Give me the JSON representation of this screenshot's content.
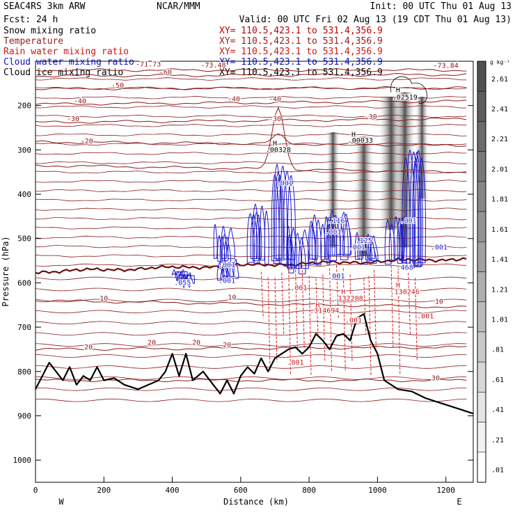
{
  "header": {
    "model": "SEAC4RS  3km ARW",
    "center": "NCAR/MMM",
    "init": "Init: 00 UTC Thu 01 Aug 13",
    "fcst": "Fcst:   24 h",
    "valid": "Valid: 00 UTC Fri 02 Aug 13 (19 CDT Thu 01 Aug 13)"
  },
  "fields": [
    {
      "label": "Snow mixing ratio",
      "range": "XY= 110.5,423.1 to 531.4,356.9",
      "color": "#000000"
    },
    {
      "label": "Temperature",
      "range": "XY= 110.5,423.1 to 531.4,356.9",
      "color": "#9b1b1b"
    },
    {
      "label": "Rain water mixing ratio",
      "range": "XY= 110.5,423.1 to 531.4,356.9",
      "color": "#d01515"
    },
    {
      "label": "Cloud water mixing ratio",
      "range": "XY= 110.5,423.1 to 531.4,356.9",
      "color": "#1414c8"
    },
    {
      "label": "Cloud ice mixing ratio",
      "range": "XY= 110.5,423.1 to 531.4,356.9",
      "color": "#000000"
    }
  ],
  "colorbar": {
    "unit": "g kg⁻¹",
    "labels": [
      "2.61",
      "2.41",
      "2.21",
      "2.01",
      "1.81",
      "1.61",
      "1.41",
      "1.21",
      "1.01",
      ".81",
      ".61",
      ".41",
      ".21",
      ".01"
    ]
  },
  "chart_data": {
    "type": "cross-section",
    "xlabel": "Distance (km)",
    "ylabel": "Pressure (hPa)",
    "xlim": [
      0,
      1280
    ],
    "ylim": [
      1050,
      100
    ],
    "x_ticks": [
      "0",
      "200",
      "400",
      "600",
      "800",
      "1000",
      "1200"
    ],
    "y_ticks": [
      "200",
      "300",
      "400",
      "500",
      "600",
      "700",
      "800",
      "900",
      "1000"
    ],
    "west_label": "W",
    "east_label": "E",
    "temperature_isotherms": [
      {
        "value": -70,
        "pressure_start": 120,
        "pressure_end": 120
      },
      {
        "value": -60,
        "pressure_start": 133,
        "pressure_end": 130
      },
      {
        "value": -50,
        "pressure_start": 162,
        "pressure_end": 160
      },
      {
        "value": -40,
        "pressure_start": 197,
        "pressure_end": 190
      },
      {
        "value": -30,
        "pressure_start": 238,
        "pressure_end": 230
      },
      {
        "value": -20,
        "pressure_start": 282,
        "pressure_end": 290
      },
      {
        "value": -10,
        "pressure_start": 335,
        "pressure_end": 350
      },
      {
        "value": 0,
        "pressure_start": 575,
        "pressure_end": 545
      },
      {
        "value": 10,
        "pressure_start": 640,
        "pressure_end": 655
      },
      {
        "value": 20,
        "pressure_start": 750,
        "pressure_end": 745
      },
      {
        "value": 30,
        "pressure_start": 820,
        "pressure_end": 820
      }
    ],
    "temperature_labels": [
      {
        "text": "-71.73",
        "x": 330,
        "p": 112
      },
      {
        "text": "-73.48",
        "x": 520,
        "p": 114
      },
      {
        "text": "-73.84",
        "x": 1200,
        "p": 115
      },
      {
        "text": "-60",
        "x": 380,
        "p": 130
      },
      {
        "text": "-50",
        "x": 240,
        "p": 160
      },
      {
        "text": "-40",
        "x": 130,
        "p": 195
      },
      {
        "text": "-40",
        "x": 580,
        "p": 190
      },
      {
        "text": "-40",
        "x": 700,
        "p": 190
      },
      {
        "text": "-30",
        "x": 110,
        "p": 235
      },
      {
        "text": "-30",
        "x": 700,
        "p": 235
      },
      {
        "text": "-30",
        "x": 980,
        "p": 230
      },
      {
        "text": "-20",
        "x": 150,
        "p": 285
      },
      {
        "text": "10",
        "x": 200,
        "p": 640
      },
      {
        "text": "10",
        "x": 575,
        "p": 638
      },
      {
        "text": "10",
        "x": 1180,
        "p": 647
      },
      {
        "text": "20",
        "x": 470,
        "p": 740
      },
      {
        "text": "20",
        "x": 560,
        "p": 745
      },
      {
        "text": "20",
        "x": 340,
        "p": 740
      },
      {
        "text": "20",
        "x": 155,
        "p": 750
      },
      {
        "text": "30",
        "x": 1170,
        "p": 820
      }
    ],
    "terrain_pressure": [
      [
        0,
        840
      ],
      [
        20,
        810
      ],
      [
        40,
        780
      ],
      [
        60,
        800
      ],
      [
        80,
        820
      ],
      [
        100,
        790
      ],
      [
        120,
        830
      ],
      [
        140,
        810
      ],
      [
        160,
        820
      ],
      [
        180,
        790
      ],
      [
        200,
        820
      ],
      [
        230,
        815
      ],
      [
        260,
        830
      ],
      [
        300,
        840
      ],
      [
        330,
        830
      ],
      [
        360,
        820
      ],
      [
        380,
        800
      ],
      [
        400,
        760
      ],
      [
        420,
        810
      ],
      [
        440,
        760
      ],
      [
        460,
        820
      ],
      [
        490,
        800
      ],
      [
        520,
        830
      ],
      [
        540,
        850
      ],
      [
        560,
        820
      ],
      [
        580,
        850
      ],
      [
        600,
        810
      ],
      [
        620,
        790
      ],
      [
        640,
        805
      ],
      [
        660,
        770
      ],
      [
        680,
        800
      ],
      [
        700,
        770
      ],
      [
        720,
        760
      ],
      [
        740,
        750
      ],
      [
        760,
        745
      ],
      [
        780,
        760
      ],
      [
        800,
        745
      ],
      [
        820,
        715
      ],
      [
        840,
        730
      ],
      [
        860,
        750
      ],
      [
        880,
        720
      ],
      [
        900,
        715
      ],
      [
        920,
        730
      ],
      [
        940,
        680
      ],
      [
        960,
        670
      ],
      [
        980,
        730
      ],
      [
        1000,
        760
      ],
      [
        1020,
        820
      ],
      [
        1060,
        840
      ],
      [
        1100,
        845
      ],
      [
        1140,
        860
      ],
      [
        1180,
        870
      ],
      [
        1220,
        880
      ],
      [
        1260,
        890
      ],
      [
        1280,
        895
      ]
    ],
    "maxima_labels": [
      {
        "text": "H",
        "x": 700,
        "p": 290
      },
      {
        "text": ".00328",
        "x": 710,
        "p": 305
      },
      {
        "text": "H",
        "x": 930,
        "p": 270
      },
      {
        "text": ".00033",
        "x": 950,
        "p": 284
      },
      {
        "text": "H",
        "x": 1060,
        "p": 170
      },
      {
        "text": ".02519",
        "x": 1080,
        "p": 186
      },
      {
        "text": "H",
        "x": 825,
        "p": 655
      },
      {
        "text": ".314694",
        "x": 845,
        "p": 668
      },
      {
        "text": "H",
        "x": 900,
        "p": 625
      },
      {
        "text": ".132208",
        "x": 915,
        "p": 640
      },
      {
        "text": "H",
        "x": 1060,
        "p": 610
      },
      {
        "text": ".130246",
        "x": 1080,
        "p": 625
      }
    ],
    "cloud_water_labels": [
      {
        "text": ".001",
        "x": 728,
        "p": 380
      },
      {
        "text": ".116",
        "x": 880,
        "p": 465
      },
      {
        "text": ".001",
        "x": 870,
        "p": 490
      },
      {
        "text": ".125",
        "x": 960,
        "p": 510
      },
      {
        "text": ".001",
        "x": 1090,
        "p": 465
      },
      {
        "text": ".001",
        "x": 1180,
        "p": 525
      },
      {
        "text": ".001",
        "x": 940,
        "p": 525
      },
      {
        "text": ".468",
        "x": 1080,
        "p": 570
      },
      {
        "text": ".055",
        "x": 430,
        "p": 605
      },
      {
        "text": ".001",
        "x": 560,
        "p": 565
      },
      {
        "text": ".001",
        "x": 560,
        "p": 600
      },
      {
        "text": ".001",
        "x": 880,
        "p": 590
      }
    ],
    "rain_labels": [
      {
        "text": ".001",
        "x": 770,
        "p": 617
      },
      {
        "text": ".001",
        "x": 930,
        "p": 690
      },
      {
        "text": ".001",
        "x": 1140,
        "p": 680
      },
      {
        "text": ".001",
        "x": 760,
        "p": 785
      }
    ]
  }
}
